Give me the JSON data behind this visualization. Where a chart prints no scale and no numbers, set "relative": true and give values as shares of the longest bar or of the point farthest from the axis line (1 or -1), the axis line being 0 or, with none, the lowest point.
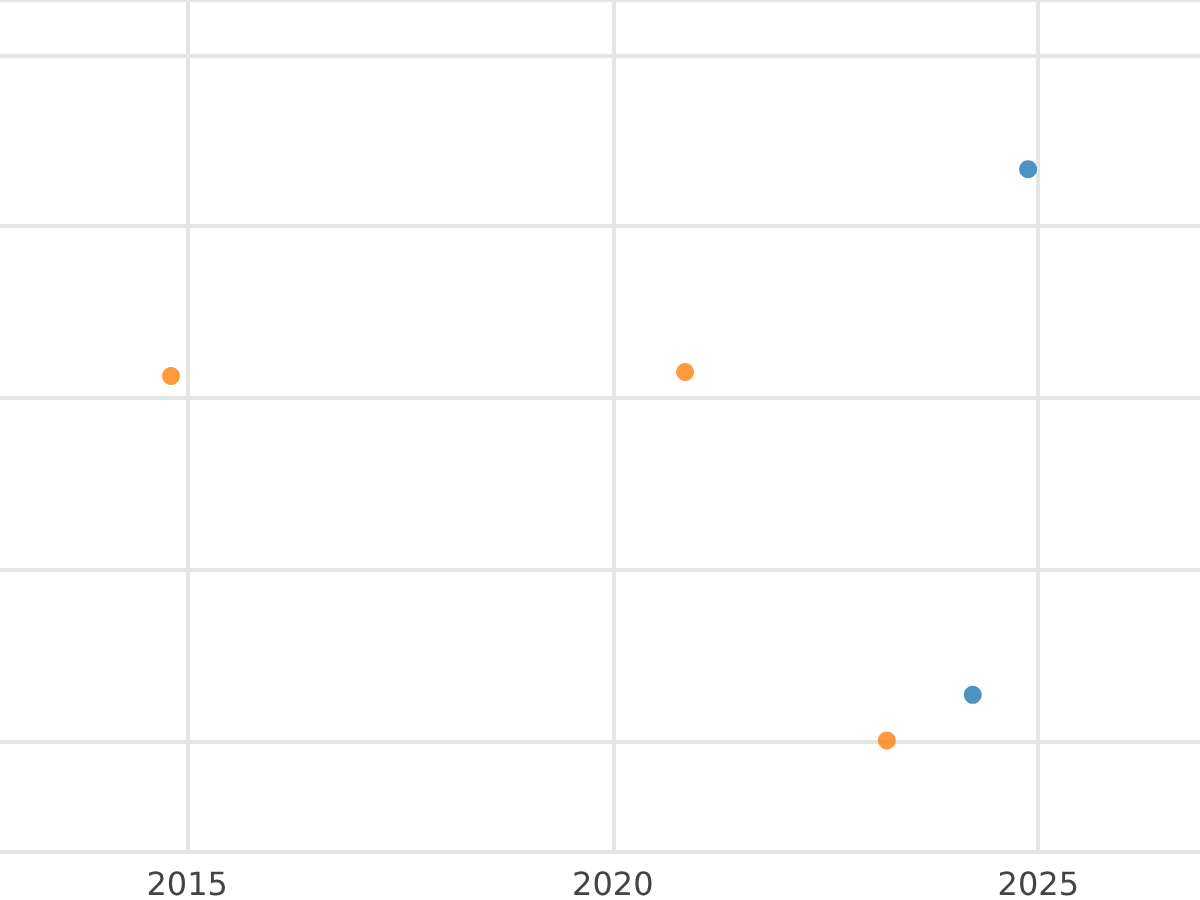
{
  "chart_data": {
    "type": "scatter",
    "relative": true,
    "xlim": [
      2012.8,
      2026.9
    ],
    "xticks": [
      2015,
      2020,
      2025
    ],
    "grid": true,
    "marker": "circle",
    "tick_labels": "x",
    "series": [
      {
        "color": "#1f77b4",
        "x": [
          2024.88,
          2024.23
        ],
        "values": [
          1,
          0.08
        ]
      },
      {
        "color": "#ff7f0e",
        "x": [
          2014.81,
          2020.85,
          2023.22
        ],
        "values": [
          0.638,
          0.645,
          0
        ]
      }
    ]
  }
}
